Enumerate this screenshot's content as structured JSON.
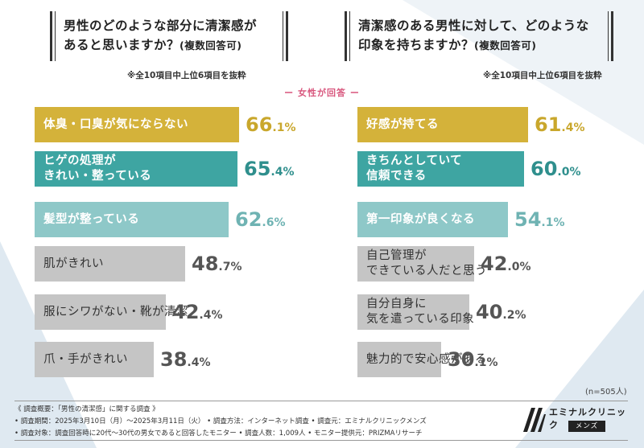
{
  "colors": {
    "gold": "#d4b23a",
    "teal": "#3ea5a2",
    "lightteal": "#8ec8c8",
    "gray": "#c5c5c5",
    "bg_tri": "#dfe9f1",
    "accent": "#d8567d"
  },
  "left": {
    "title_line1": "男性のどのような部分に清潔感が",
    "title_line2": "あると思いますか？",
    "title_sub": "(複数回答可)",
    "note": "※全10項目中上位6項目を抜粋"
  },
  "right": {
    "title_line1": "清潔感のある男性に対して、どのような",
    "title_line2": "印象を持ちますか？",
    "title_sub": "(複数回答可)",
    "note": "※全10項目中上位6項目を抜粋"
  },
  "respondent": "ー 女性が回答 ー",
  "sample_size": "(n=505人)",
  "chart_data": [
    {
      "type": "bar",
      "title": "男性のどのような部分に清潔感があると思いますか？(複数回答可)",
      "categories": [
        "体臭・口臭が気にならない",
        "ヒゲの処理が\nきれい・整っている",
        "髪型が整っている",
        "肌がきれい",
        "服にシワがない・靴が清潔",
        "爪・手がきれい"
      ],
      "values": [
        66.1,
        65.4,
        62.6,
        48.7,
        42.4,
        38.4
      ],
      "unit": "%"
    },
    {
      "type": "bar",
      "title": "清潔感のある男性に対して、どのような印象を持ちますか？(複数回答可)",
      "categories": [
        "好感が持てる",
        "きちんとしていて\n信頼できる",
        "第一印象が良くなる",
        "自己管理が\nできている人だと思う",
        "自分自身に\n気を遣っている印象",
        "魅力的で安心感がある"
      ],
      "values": [
        61.4,
        60.0,
        54.1,
        42.0,
        40.2,
        30.1
      ],
      "unit": "%"
    }
  ],
  "footer": {
    "line1": "《 調査概要：「男性の清潔感」に関する調査 》",
    "line2": "• 調査期間：2025年3月10日（月）～2025年3月11日（火）   • 調査方法：インターネット調査          • 調査元：エミナルクリニックメンズ",
    "line3": "• 調査対象：調査回答時に20代〜30代の男女であると回答したモニター   • 調査人数：1,009人   • モニター提供元：PRIZMAリサーチ"
  },
  "logo": {
    "name": "エミナルクリニック",
    "sub": "メンズ"
  }
}
